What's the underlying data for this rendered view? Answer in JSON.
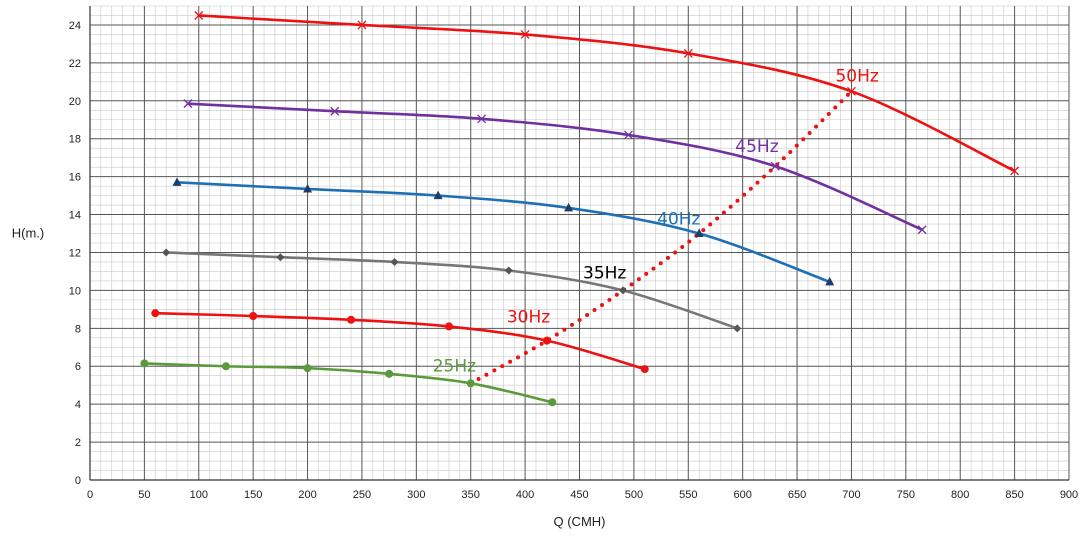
{
  "chart_data": {
    "type": "line",
    "xlabel": "Q (CMH)",
    "ylabel": "H(m.)",
    "xlim": [
      0,
      900
    ],
    "ylim": [
      0,
      25
    ],
    "x_ticks": [
      0,
      50,
      100,
      150,
      200,
      250,
      300,
      350,
      400,
      450,
      500,
      550,
      600,
      650,
      700,
      750,
      800,
      850,
      900
    ],
    "y_ticks": [
      0,
      2,
      4,
      6,
      8,
      10,
      12,
      14,
      16,
      18,
      20,
      22,
      24
    ],
    "grid": true,
    "minor_grid": true,
    "series": [
      {
        "name": "50Hz",
        "color": "#ee1111",
        "marker": "x",
        "x": [
          100,
          250,
          400,
          550,
          700,
          850
        ],
        "y": [
          24.5,
          24.0,
          23.5,
          22.5,
          20.5,
          16.3
        ]
      },
      {
        "name": "45Hz",
        "color": "#7030a0",
        "marker": "x",
        "x": [
          90,
          225,
          360,
          495,
          630,
          765
        ],
        "y": [
          19.85,
          19.45,
          19.05,
          18.2,
          16.55,
          13.2
        ]
      },
      {
        "name": "40Hz",
        "color": "#1f6fb4",
        "marker": "triangle",
        "x": [
          80,
          200,
          320,
          440,
          560,
          680
        ],
        "y": [
          15.7,
          15.35,
          15.0,
          14.35,
          13.0,
          10.45
        ]
      },
      {
        "name": "35Hz",
        "color": "#767676",
        "marker": "diamond",
        "x": [
          70,
          175,
          280,
          385,
          490,
          595
        ],
        "y": [
          12.0,
          11.75,
          11.5,
          11.05,
          10.0,
          8.0
        ]
      },
      {
        "name": "30Hz",
        "color": "#ee1111",
        "marker": "circle",
        "x": [
          60,
          150,
          240,
          330,
          420,
          510
        ],
        "y": [
          8.8,
          8.65,
          8.45,
          8.1,
          7.35,
          5.85
        ]
      },
      {
        "name": "25Hz",
        "color": "#5b9a3c",
        "marker": "circle",
        "x": [
          50,
          125,
          200,
          275,
          350,
          425
        ],
        "y": [
          6.15,
          6.0,
          5.9,
          5.6,
          5.1,
          4.1
        ]
      }
    ],
    "system_curve": {
      "color": "#ee1111",
      "style": "dotted",
      "x": [
        350,
        420,
        490,
        560,
        630,
        700
      ],
      "y": [
        5.1,
        7.35,
        10.0,
        13.0,
        16.55,
        20.5
      ]
    },
    "annotations": [
      {
        "text": "50Hz",
        "color": "#ee1111",
        "x": 700,
        "y": 20.5
      },
      {
        "text": "45Hz",
        "color": "#7030a0",
        "x": 630,
        "y": 16.55
      },
      {
        "text": "40Hz",
        "color": "#1f6fb4",
        "x": 560,
        "y": 13.0
      },
      {
        "text": "35Hz",
        "color": "#000000",
        "x": 490,
        "y": 10.0
      },
      {
        "text": "30Hz",
        "color": "#ee1111",
        "x": 420,
        "y": 7.35
      },
      {
        "text": "25Hz",
        "color": "#5b9a3c",
        "x": 350,
        "y": 5.1
      }
    ]
  }
}
